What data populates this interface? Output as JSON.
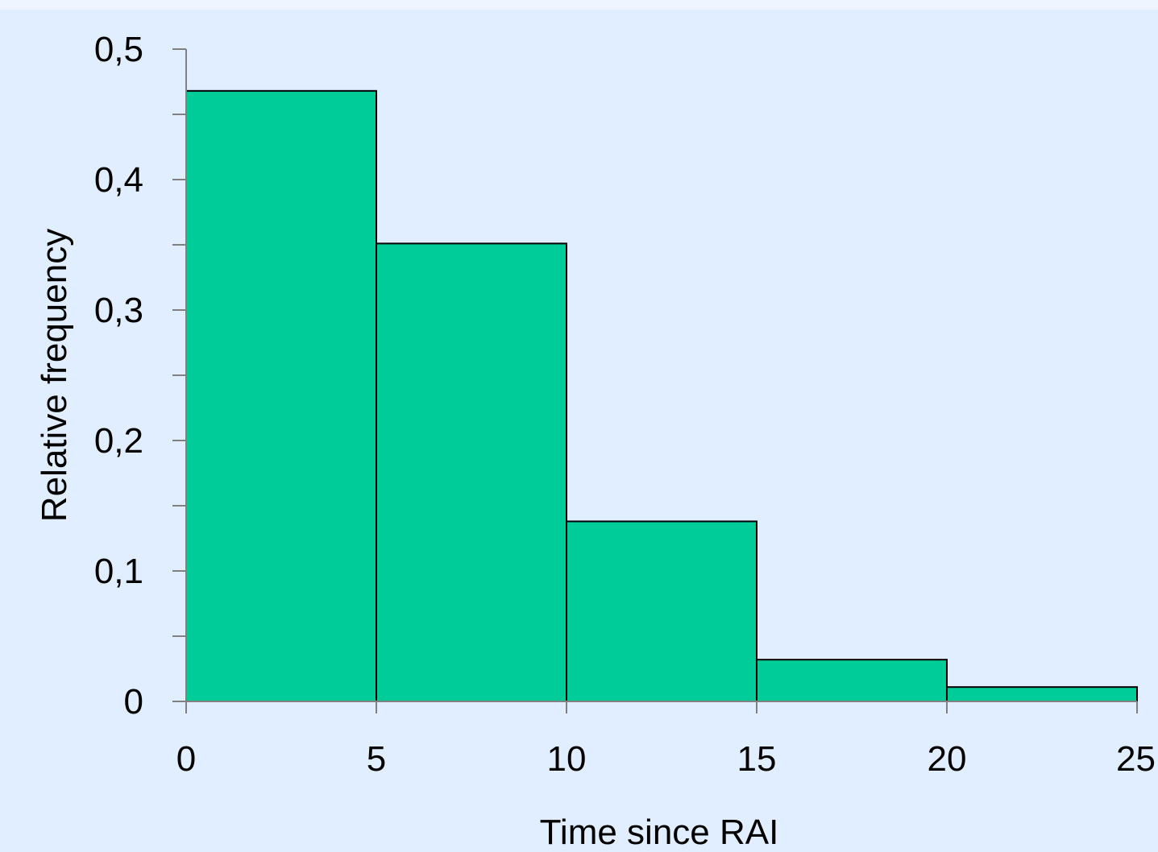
{
  "chart_data": {
    "type": "bar",
    "title": "",
    "xlabel": "Time since RAI",
    "ylabel": "Relative frequency",
    "bins": [
      {
        "x0": 0,
        "x1": 5,
        "value": 0.468
      },
      {
        "x0": 5,
        "x1": 10,
        "value": 0.351
      },
      {
        "x0": 10,
        "x1": 15,
        "value": 0.138
      },
      {
        "x0": 15,
        "x1": 20,
        "value": 0.032
      },
      {
        "x0": 20,
        "x1": 25,
        "value": 0.011
      }
    ],
    "xlim": [
      0,
      25
    ],
    "ylim": [
      0,
      0.5
    ],
    "x_ticks": [
      0,
      5,
      10,
      15,
      20,
      25
    ],
    "x_tick_labels": [
      "0",
      "5",
      "10",
      "15",
      "20",
      "25"
    ],
    "y_ticks": [
      0,
      0.1,
      0.2,
      0.3,
      0.4,
      0.5
    ],
    "y_tick_labels": [
      "0",
      "0,1",
      "0,2",
      "0,3",
      "0,4",
      "0,5"
    ],
    "y_minor_ticks": [
      0.05,
      0.15,
      0.25,
      0.35,
      0.45
    ],
    "grid": false,
    "legend": "none",
    "colors": {
      "bar_fill": "#00cc99",
      "bar_stroke": "#000000",
      "axis": "#808080",
      "background": "#e1eeff"
    }
  }
}
